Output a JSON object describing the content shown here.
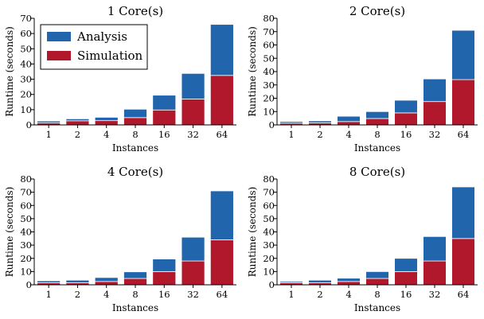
{
  "colors": {
    "analysis": "#2166ac",
    "simulation": "#b2182b"
  },
  "chart_data": [
    {
      "type": "bar",
      "stacked": true,
      "title": "1 Core(s)",
      "xlabel": "Instances",
      "ylabel": "Runtime (seconds)",
      "categories": [
        "1",
        "2",
        "4",
        "8",
        "16",
        "32",
        "64"
      ],
      "ylim": [
        0,
        70
      ],
      "yticks": [
        0,
        10,
        20,
        30,
        40,
        50,
        60,
        70
      ],
      "series": [
        {
          "name": "Simulation",
          "values": [
            1.3,
            2.7,
            2.8,
            4.8,
            9.8,
            17.0,
            32.5
          ]
        },
        {
          "name": "Analysis",
          "values": [
            1.2,
            1.3,
            2.2,
            5.5,
            9.7,
            16.8,
            33.5
          ]
        }
      ],
      "legend": "top-left"
    },
    {
      "type": "bar",
      "stacked": true,
      "title": "2 Core(s)",
      "xlabel": "Instances",
      "ylabel": "Runtime (seconds)",
      "categories": [
        "1",
        "2",
        "4",
        "8",
        "16",
        "32",
        "64"
      ],
      "ylim": [
        0,
        80
      ],
      "yticks": [
        0,
        10,
        20,
        30,
        40,
        50,
        60,
        70,
        80
      ],
      "series": [
        {
          "name": "Simulation",
          "values": [
            1.3,
            1.5,
            2.5,
            4.8,
            9.0,
            17.5,
            34.0
          ]
        },
        {
          "name": "Analysis",
          "values": [
            1.2,
            1.5,
            4.0,
            5.2,
            9.5,
            17.0,
            37.0
          ]
        }
      ]
    },
    {
      "type": "bar",
      "stacked": true,
      "title": "4 Core(s)",
      "xlabel": "Instances",
      "ylabel": "Runtime (seconds)",
      "categories": [
        "1",
        "2",
        "4",
        "8",
        "16",
        "32",
        "64"
      ],
      "ylim": [
        0,
        80
      ],
      "yticks": [
        0,
        10,
        20,
        30,
        40,
        50,
        60,
        70,
        80
      ],
      "series": [
        {
          "name": "Simulation",
          "values": [
            1.5,
            1.5,
            2.5,
            4.8,
            10.0,
            18.0,
            34.0
          ]
        },
        {
          "name": "Analysis",
          "values": [
            1.5,
            2.0,
            3.0,
            5.0,
            9.5,
            18.0,
            37.0
          ]
        }
      ]
    },
    {
      "type": "bar",
      "stacked": true,
      "title": "8 Core(s)",
      "xlabel": "Instances",
      "ylabel": "Runtime (seconds)",
      "categories": [
        "1",
        "2",
        "4",
        "8",
        "16",
        "32",
        "64"
      ],
      "ylim": [
        0,
        80
      ],
      "yticks": [
        0,
        10,
        20,
        30,
        40,
        50,
        60,
        70,
        80
      ],
      "series": [
        {
          "name": "Simulation",
          "values": [
            1.5,
            1.5,
            2.5,
            4.8,
            10.0,
            18.0,
            35.0
          ]
        },
        {
          "name": "Analysis",
          "values": [
            1.0,
            2.0,
            2.5,
            5.2,
            10.0,
            18.5,
            39.0
          ]
        }
      ]
    }
  ]
}
